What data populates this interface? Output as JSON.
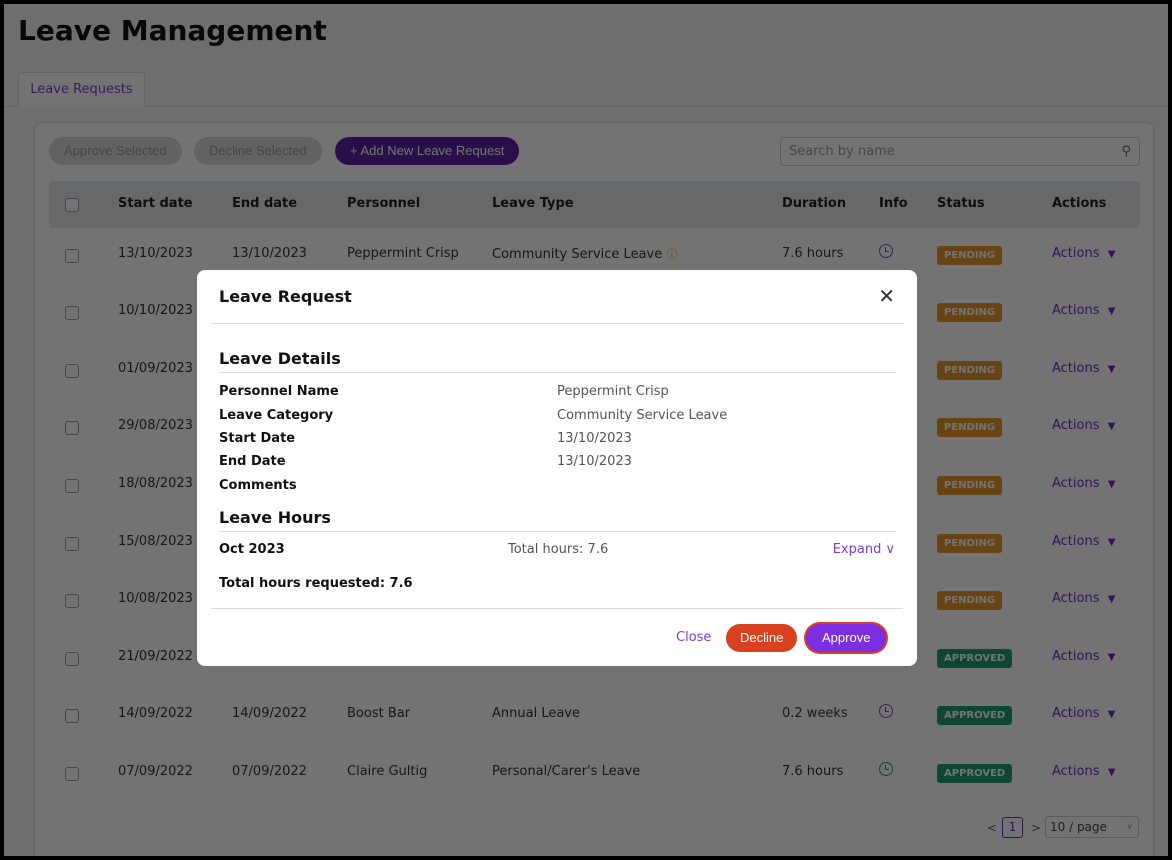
{
  "page": {
    "title": "Leave Management",
    "tab": "Leave Requests"
  },
  "toolbar": {
    "approve_selected": "Approve Selected",
    "decline_selected": "Decline Selected",
    "add_new": "Add New Leave Request",
    "search_placeholder": "Search by name"
  },
  "table": {
    "headers": [
      "Start date",
      "End date",
      "Personnel",
      "Leave Type",
      "Duration",
      "Info",
      "Status",
      "Actions"
    ],
    "rows": [
      {
        "start": "13/10/2023",
        "end": "13/10/2023",
        "personnel": "Peppermint Crisp",
        "type": "Community Service Leave",
        "duration": "7.6 hours",
        "status": "PENDING",
        "actions": "Actions"
      },
      {
        "start": "10/10/2023",
        "status": "PENDING",
        "actions": "Actions"
      },
      {
        "start": "01/09/2023",
        "status": "PENDING",
        "actions": "Actions"
      },
      {
        "start": "29/08/2023",
        "status": "PENDING",
        "actions": "Actions"
      },
      {
        "start": "18/08/2023",
        "status": "PENDING",
        "actions": "Actions"
      },
      {
        "start": "15/08/2023",
        "status": "PENDING",
        "actions": "Actions"
      },
      {
        "start": "10/08/2023",
        "status": "PENDING",
        "actions": "Actions"
      },
      {
        "start": "21/09/2022",
        "status": "APPROVED",
        "actions": "Actions"
      },
      {
        "start": "14/09/2022",
        "end": "14/09/2022",
        "personnel": "Boost Bar",
        "type": "Annual Leave",
        "duration": "0.2 weeks",
        "status": "APPROVED",
        "actions": "Actions"
      },
      {
        "start": "07/09/2022",
        "end": "07/09/2022",
        "personnel": "Claire Gultig",
        "type": "Personal/Carer's Leave",
        "duration": "7.6 hours",
        "status": "APPROVED",
        "actions": "Actions"
      }
    ]
  },
  "pagination": {
    "prev": "<",
    "page": "1",
    "next": ">",
    "page_size": "10 / page"
  },
  "modal": {
    "title": "Leave Request",
    "details_heading": "Leave Details",
    "fields": [
      {
        "label": "Personnel Name",
        "value": "Peppermint Crisp"
      },
      {
        "label": "Leave Category",
        "value": "Community Service Leave"
      },
      {
        "label": "Start Date",
        "value": "13/10/2023"
      },
      {
        "label": "End Date",
        "value": "13/10/2023"
      },
      {
        "label": "Comments",
        "value": ""
      }
    ],
    "hours_heading": "Leave Hours",
    "month": "Oct 2023",
    "month_total": "Total hours: 7.6",
    "expand": "Expand",
    "total_requested": "Total hours requested: 7.6",
    "close": "Close",
    "decline": "Decline",
    "approve": "Approve"
  },
  "colors": {
    "accent": "#7b2fe0",
    "pending": "#e6962c",
    "approved": "#1e9c74",
    "decline": "#d9401f"
  }
}
